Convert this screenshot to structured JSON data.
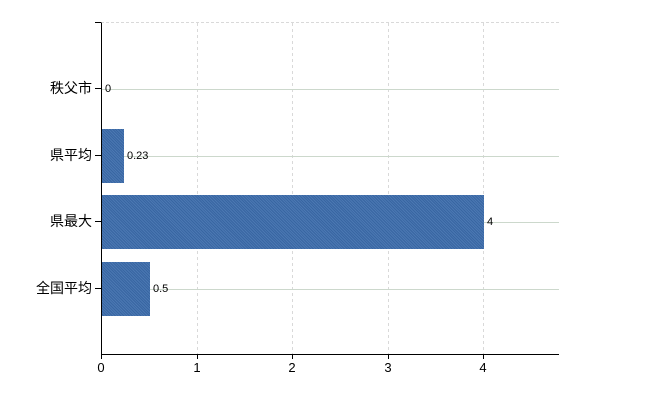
{
  "chart_data": {
    "type": "bar",
    "orientation": "horizontal",
    "title": "",
    "categories": [
      "秩父市",
      "県平均",
      "県最大",
      "全国平均"
    ],
    "values": [
      0,
      0.23,
      4,
      0.5
    ],
    "data_labels": [
      "0",
      "0.23",
      "4",
      "0.5"
    ],
    "x_ticks": [
      0,
      1,
      2,
      3,
      4
    ],
    "tick_labels": [
      "0",
      "1",
      "2",
      "3",
      "4"
    ],
    "xlim": [
      0,
      4.79
    ],
    "grid": true,
    "legend": false,
    "colors": {
      "bar": "#3c6cac",
      "h_gridline": "#ccd8cc",
      "v_gridline": "#d9d9d9",
      "axis": "#000000",
      "text": "#000000",
      "background": "#ffffff"
    }
  }
}
